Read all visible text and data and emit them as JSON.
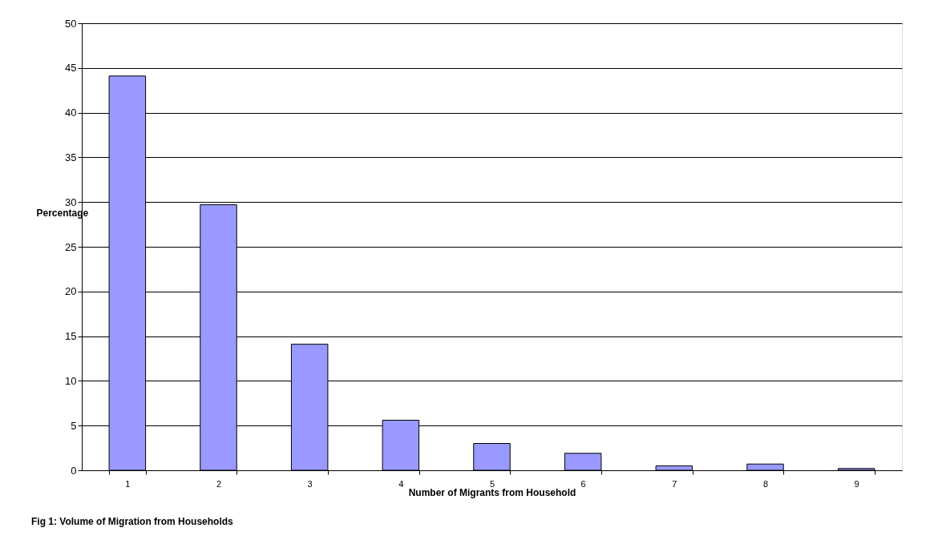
{
  "chart_data": {
    "type": "bar",
    "title": "Fig 1: Volume of Migration from Households",
    "xlabel": "Number of Migrants from Household",
    "ylabel": "Percentage",
    "categories": [
      "1",
      "2",
      "3",
      "4",
      "5",
      "6",
      "7",
      "8",
      "9"
    ],
    "values": [
      44.1,
      29.7,
      14.1,
      5.6,
      3.0,
      1.9,
      0.5,
      0.7,
      0.2
    ],
    "color": "#9999ff",
    "ylim": [
      0,
      50
    ],
    "yticks": [
      0,
      5,
      10,
      15,
      20,
      25,
      30,
      35,
      40,
      45,
      50
    ],
    "grid": "y"
  }
}
